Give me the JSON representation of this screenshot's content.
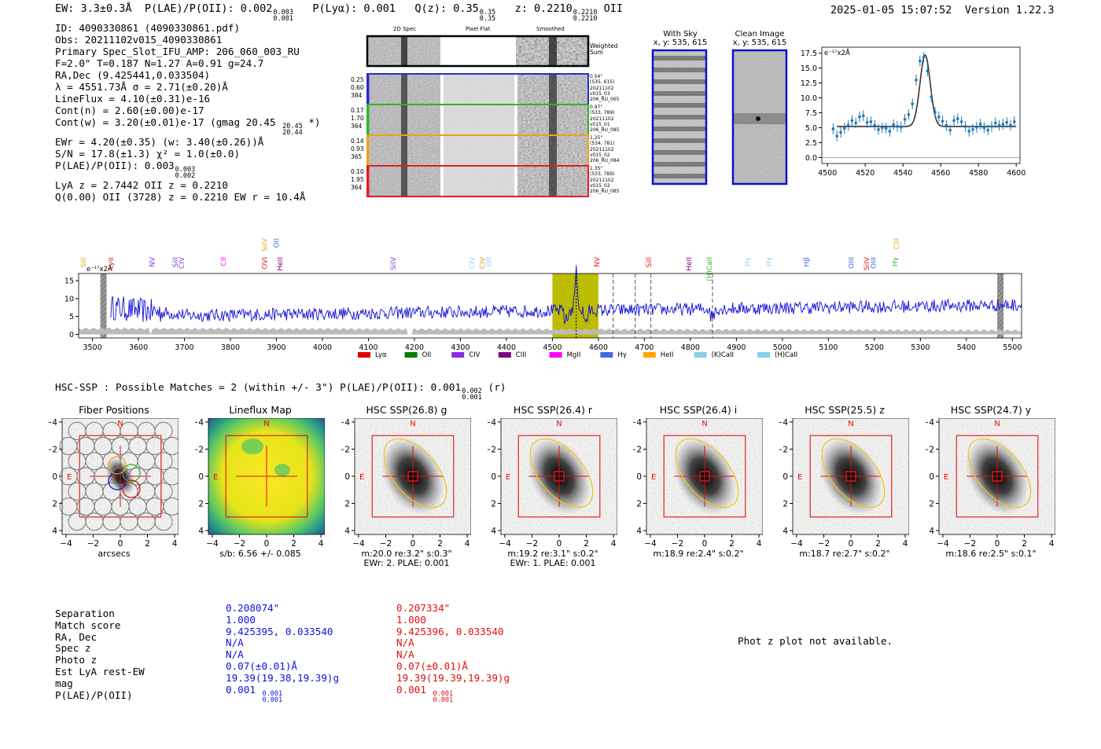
{
  "header": {
    "ew": "EW: 3.3±0.3Å",
    "plae_label": "P(LAE)/P(OII): 0.002",
    "plae_sup": "0.003",
    "plae_sub": "0.001",
    "plya": "P(Lyα): 0.001",
    "qz_label": "Q(z): 0.35",
    "qz_sup": "0.35",
    "qz_sub": "0.35",
    "z_label": "z: 0.2210",
    "z_sup": "0.2210",
    "z_sub": "0.2210",
    "z_line": "OII",
    "timestamp": "2025-01-05 15:07:52",
    "version": "Version 1.22.3"
  },
  "info": {
    "id": "ID: 4090330861 (4090330861.pdf)",
    "obs": "Obs: 20211102v015_4090330861",
    "primary": "Primary Spec_Slot_IFU_AMP: 206_060_003_RU",
    "fparams": "F=2.0\"  T=0.187  N=1.27  A=0.91  g=24.7",
    "radec": "RA,Dec (9.425441,0.033504)",
    "lambda": "λ = 4551.73Å  σ = 2.71(±0.20)Å",
    "lineflux": "LineFlux = 4.10(±0.31)e-16",
    "contn": "Cont(n) = 2.60(±0.00)e-17",
    "contw": "Cont(w) = 3.20(±0.01)e-17 (gmag 20.45",
    "contw_sup": "20.45",
    "contw_sub": "20.44",
    "contw_end": "*)",
    "ewr": "EWr = 4.20(±0.35) (w: 3.40(±0.26))Å",
    "sn": "S/N = 17.8(±1.3)  χ² = 1.0(±0.0)",
    "plae": "P(LAE)/P(OII): 0.003",
    "plae_sup": "0.003",
    "plae_sub": "0.002",
    "lyaz": "LyA z = 2.7442  OII z = 0.2210",
    "q": "Q(0.00) OII (3728) z = 0.2210  EW r = 10.4Å"
  },
  "spec2d": {
    "col_labels": [
      "2D Spec",
      "Pixel Flat",
      "Smoothed"
    ],
    "weighted_label": "Weighted Sum",
    "rows": [
      {
        "left": [
          "0.25",
          "0.60",
          "384"
        ],
        "right": [
          "0.54\"",
          "(535, 615)",
          "20211102",
          "v015_03",
          "206_RU_065"
        ],
        "color": "#2a2ad8"
      },
      {
        "left": [
          "0.17",
          "1.70",
          "364"
        ],
        "right": [
          "0.97\"",
          "(533, 789)",
          "20211102",
          "v015_01",
          "206_RU_085"
        ],
        "color": "#2bb52b"
      },
      {
        "left": [
          "0.14",
          "0.93",
          "365"
        ],
        "right": [
          "1.25\"",
          "(534, 781)",
          "20211102",
          "v015_02",
          "206_RU_084"
        ],
        "color": "#f0a020"
      },
      {
        "left": [
          "0.10",
          "1.95",
          "364"
        ],
        "right": [
          "1.35\"",
          "(533, 789)",
          "20211102",
          "v015_02",
          "206_RU_085"
        ],
        "color": "#e02020"
      }
    ]
  },
  "cutouts": {
    "with_sky_title": "With Sky",
    "with_sky_xy": "x, y: 535, 615",
    "clean_title": "Clean Image",
    "clean_xy": "x, y: 535, 615"
  },
  "chart_data": [
    {
      "type": "scatter",
      "name": "line-fit",
      "unit_label": "e⁻¹⁷x2Å",
      "xlim": [
        4497,
        4602
      ],
      "ylim": [
        -1,
        18.5
      ],
      "xticks": [
        4500,
        4520,
        4540,
        4560,
        4580,
        4600
      ],
      "yticks": [
        0.0,
        2.5,
        5.0,
        7.5,
        10.0,
        12.5,
        15.0,
        17.5
      ],
      "points_x": [
        4503,
        4505,
        4507,
        4509,
        4511,
        4513,
        4515,
        4517,
        4519,
        4521,
        4523,
        4525,
        4527,
        4529,
        4531,
        4533,
        4535,
        4537,
        4539,
        4541,
        4543,
        4545,
        4547,
        4549,
        4551,
        4553,
        4555,
        4557,
        4559,
        4561,
        4563,
        4565,
        4567,
        4569,
        4571,
        4573,
        4575,
        4577,
        4579,
        4581,
        4583,
        4585,
        4587,
        4589,
        4591,
        4593,
        4595,
        4597,
        4599
      ],
      "points_y": [
        4.8,
        3.6,
        4.2,
        4.9,
        5.4,
        6.2,
        5.8,
        6.8,
        7.0,
        5.9,
        6.0,
        5.4,
        4.7,
        5.0,
        4.9,
        4.4,
        5.5,
        5.2,
        5.1,
        6.4,
        7.2,
        9.0,
        13.0,
        16.2,
        16.8,
        14.5,
        10.2,
        7.6,
        6.8,
        6.1,
        5.4,
        4.6,
        6.2,
        6.5,
        6.0,
        5.2,
        4.4,
        4.7,
        5.1,
        5.6,
        5.0,
        4.6,
        5.2,
        5.8,
        5.4,
        5.6,
        5.9,
        5.4,
        6.0
      ],
      "errors": 0.9,
      "fit": {
        "center": 4551.73,
        "sigma": 2.71,
        "amplitude": 12.0,
        "continuum": 5.2,
        "x_start": 4505
      }
    },
    {
      "type": "line",
      "name": "full-spectrum",
      "unit_label": "e⁻¹⁷x2Å",
      "xlim": [
        3470,
        5520
      ],
      "ylim": [
        -1,
        17
      ],
      "xticks": [
        3500,
        3600,
        3700,
        3800,
        3900,
        4000,
        4100,
        4200,
        4300,
        4400,
        4500,
        4600,
        4700,
        4800,
        4900,
        5000,
        5100,
        5200,
        5300,
        5400,
        5500
      ],
      "yticks": [
        0,
        5,
        10,
        15
      ],
      "highlight_band": [
        4500,
        4600
      ],
      "peak": 4551.73,
      "dashed_lines": [
        4632,
        4680,
        4714,
        4848
      ],
      "bad_bands": [
        [
          3500,
          3542
        ],
        [
          5450,
          5460
        ]
      ],
      "line_labels": [
        {
          "text": "SiII",
          "x": 3480,
          "color": "#f0a020"
        },
        {
          "text": "Lyα",
          "x": 3539,
          "color": "#e02020"
        },
        {
          "text": "NV",
          "x": 3630,
          "color": "#8040e0"
        },
        {
          "text": "SiII",
          "x": 3680,
          "color": "#8040e0"
        },
        {
          "text": "CIV",
          "x": 3694,
          "color": "#8040e0"
        },
        {
          "text": "CII",
          "x": 3785,
          "color": "#ff00ff"
        },
        {
          "text": "OVI",
          "x": 3874,
          "color": "#e02020"
        },
        {
          "text": "SiIV",
          "x": 3874,
          "color": "#f0a020"
        },
        {
          "text": "OII",
          "x": 3900,
          "color": "#4070e0"
        },
        {
          "text": "HeII",
          "x": 3908,
          "color": "#800080"
        },
        {
          "text": "SiIV",
          "x": 4154,
          "color": "#8040e0"
        },
        {
          "text": "CIV",
          "x": 4325,
          "color": "#90d0f0"
        },
        {
          "text": "CIV",
          "x": 4348,
          "color": "#f0a020"
        },
        {
          "text": "OII",
          "x": 4362,
          "color": "#90d0f0"
        },
        {
          "text": "NV",
          "x": 4597,
          "color": "#e02020"
        },
        {
          "text": "SiII",
          "x": 4710,
          "color": "#e02020"
        },
        {
          "text": "HeII",
          "x": 4797,
          "color": "#800080"
        },
        {
          "text": "(H)CaII",
          "x": 4841,
          "color": "#2bb52b"
        },
        {
          "text": "Hγ",
          "x": 4924,
          "color": "#90d0f0"
        },
        {
          "text": "Hγ",
          "x": 4970,
          "color": "#90d0f0"
        },
        {
          "text": "Hβ",
          "x": 5052,
          "color": "#4070e0"
        },
        {
          "text": "OIII",
          "x": 5150,
          "color": "#4070e0"
        },
        {
          "text": "SiIV",
          "x": 5183,
          "color": "#e02020"
        },
        {
          "text": "OIII",
          "x": 5198,
          "color": "#4070e0"
        },
        {
          "text": "Hγ",
          "x": 5245,
          "color": "#2bb52b"
        },
        {
          "text": "CIII",
          "x": 5248,
          "color": "#f0a020"
        }
      ],
      "legend": [
        {
          "label": "Lyα",
          "color": "#e00000"
        },
        {
          "label": "OII",
          "color": "#008000"
        },
        {
          "label": "CIV",
          "color": "#8a2be2"
        },
        {
          "label": "CIII",
          "color": "#800080"
        },
        {
          "label": "MgII",
          "color": "#ff00ff"
        },
        {
          "label": "Hγ",
          "color": "#4169e1"
        },
        {
          "label": "HeII",
          "color": "#ffa500"
        },
        {
          "label": "(K)CaII",
          "color": "#87ceeb"
        },
        {
          "label": "(H)CaII",
          "color": "#87ceeb"
        }
      ]
    }
  ],
  "hsc": {
    "summary": "HSC-SSP : Possible Matches = 2 (within +/- 3\")  P(LAE)/P(OII): 0.001",
    "summary_sup": "0.002",
    "summary_sub": "0.001",
    "summary_end": "(r)",
    "ticks": [
      "4",
      "2",
      "0",
      "−2",
      "−4"
    ],
    "xticks": [
      "−4",
      "−2",
      "0",
      "2",
      "4"
    ],
    "north": "N",
    "east": "E",
    "panels": [
      {
        "title": "Fiber Positions",
        "caption1": "arcsecs",
        "caption2": "",
        "kind": "fiber"
      },
      {
        "title": "Lineflux Map",
        "caption1": "s/b: 6.56 +/- 0.085",
        "caption2": "",
        "kind": "flux"
      },
      {
        "title": "HSC SSP(26.8) g",
        "caption1": "m:20.0  re:3.2\"  s:0.3\"",
        "caption2": "EWr: 2. PLAE: 0.001",
        "kind": "hsc"
      },
      {
        "title": "HSC SSP(26.4) r",
        "caption1": "m:19.2  re:3.1\"  s:0.2\"",
        "caption2": "EWr: 1. PLAE: 0.001",
        "kind": "hsc"
      },
      {
        "title": "HSC SSP(26.4) i",
        "caption1": "m:18.9  re:2.4\"  s:0.2\"",
        "caption2": "",
        "kind": "hsc"
      },
      {
        "title": "HSC SSP(25.5) z",
        "caption1": "m:18.7  re:2.7\"  s:0.2\"",
        "caption2": "",
        "kind": "hsc"
      },
      {
        "title": "HSC SSP(24.7) y",
        "caption1": "m:18.6  re:2.5\"  s:0.1\"",
        "caption2": "",
        "kind": "hsc"
      }
    ]
  },
  "match_table": {
    "labels": [
      "Separation",
      "Match score",
      "RA, Dec",
      "Spec z",
      "Photo z",
      "Est LyA rest-EW",
      "mag",
      "P(LAE)/P(OII)"
    ],
    "col1": [
      "0.208074\"",
      "1.000",
      "9.425395, 0.033540",
      "N/A",
      "N/A",
      "0.07(±0.01)Å",
      "19.39(19.38,19.39)g",
      "0.001"
    ],
    "col1_sup": "0.001",
    "col1_sub": "0.001",
    "col2": [
      "0.207334\"",
      "1.000",
      "9.425396, 0.033540",
      "N/A",
      "N/A",
      "0.07(±0.01)Å",
      "19.39(19.39,19.39)g",
      "0.001"
    ],
    "col2_sup": "0.001",
    "col2_sub": "0.001",
    "col1_color": "#1010e0",
    "col2_color": "#e01010",
    "photz_msg": "Phot z plot not available."
  }
}
